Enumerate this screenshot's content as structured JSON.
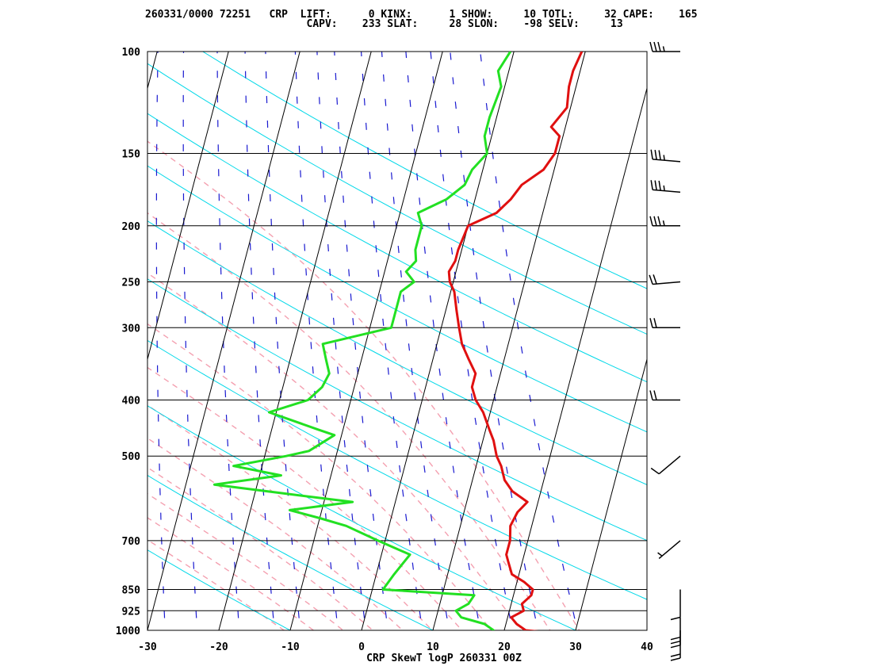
{
  "header": {
    "line1": "260331/0000 72251   CRP  LIFT:      0 KINX:      1 SHOW:     10 TOTL:     32 CAPE:    165",
    "line2": "                          CAPV:    233 SLAT:     28 SLON:    -98 SELV:     13"
  },
  "colors": {
    "temperature": "#e01010",
    "dewpoint": "#22e022",
    "isotherm": "#000000",
    "dry_adiabat": "#00d8e8",
    "moist_adiabat": "#f4a0b0",
    "mixing_ratio": "#1a1ad0",
    "isobar": "#000000"
  },
  "chart_data": {
    "type": "line",
    "title": "CRP SkewT logP 260331 00Z",
    "xlabel": "",
    "ylabel": "",
    "xlim": [
      -30,
      40
    ],
    "ylim": [
      1000,
      100
    ],
    "y_scale": "log",
    "x_ticks": [
      -30,
      -20,
      -10,
      0,
      10,
      20,
      30,
      40
    ],
    "x_tick_labels": [
      "-30",
      "-20",
      "-10",
      "0",
      "10",
      "20",
      "30",
      "40"
    ],
    "pressure_levels": [
      100,
      150,
      200,
      250,
      300,
      400,
      500,
      700,
      850,
      925,
      1000
    ],
    "pressure_labels": [
      "100",
      "150",
      "200",
      "250",
      "300",
      "400",
      "500",
      "700",
      "850",
      "925",
      "1000"
    ],
    "grid": true,
    "series": [
      {
        "role": "temperature",
        "pressure": [
          1010,
          1000,
          975,
          950,
          925,
          900,
          870,
          850,
          825,
          800,
          760,
          740,
          700,
          660,
          625,
          600,
          575,
          550,
          520,
          500,
          470,
          450,
          420,
          400,
          380,
          360,
          340,
          320,
          300,
          280,
          260,
          250,
          240,
          230,
          220,
          200,
          190,
          180,
          170,
          160,
          150,
          140,
          135,
          125,
          115,
          108,
          100
        ],
        "values": [
          27.0,
          23.0,
          21.5,
          20.5,
          22.0,
          21.5,
          22.5,
          22.5,
          21.0,
          19.0,
          18.0,
          17.5,
          17.5,
          17.0,
          17.5,
          18.5,
          16.0,
          14.5,
          13.5,
          12.5,
          11.5,
          10.5,
          9.0,
          7.5,
          6.5,
          6.5,
          5.0,
          3.5,
          2.5,
          1.5,
          0.5,
          -0.5,
          -1.0,
          -0.5,
          -0.5,
          0.0,
          3.5,
          5.0,
          6.0,
          8.5,
          9.5,
          9.5,
          8.0,
          9.5,
          9.0,
          9.0,
          9.5
        ]
      },
      {
        "role": "dewpoint",
        "pressure": [
          1010,
          1000,
          975,
          950,
          925,
          900,
          870,
          850,
          800,
          740,
          700,
          660,
          640,
          620,
          600,
          580,
          560,
          540,
          520,
          500,
          490,
          460,
          450,
          420,
          400,
          380,
          360,
          340,
          320,
          300,
          280,
          260,
          250,
          240,
          230,
          220,
          200,
          190,
          180,
          170,
          160,
          150,
          140,
          130,
          115,
          108,
          100
        ],
        "values": [
          18.5,
          18.5,
          17.0,
          13.5,
          12.5,
          14.0,
          14.5,
          1.5,
          2.5,
          4.0,
          -1.0,
          -6.0,
          -10.0,
          -14.5,
          -6.0,
          -16.0,
          -26.0,
          -17.0,
          -24.0,
          -17.0,
          -14.0,
          -11.0,
          -13.5,
          -21.0,
          -16.0,
          -14.5,
          -14.0,
          -15.0,
          -16.0,
          -7.0,
          -7.0,
          -7.0,
          -5.5,
          -7.0,
          -6.0,
          -6.5,
          -6.5,
          -7.5,
          -4.0,
          -2.0,
          -1.5,
          0.0,
          -1.0,
          -1.0,
          -0.5,
          -1.5,
          -0.5
        ]
      }
    ],
    "wind_barbs": [
      {
        "pressure": 1000,
        "direction": 180,
        "speed_kt": 20
      },
      {
        "pressure": 950,
        "direction": 180,
        "speed_kt": 30
      },
      {
        "pressure": 850,
        "direction": 180,
        "speed_kt": 10
      },
      {
        "pressure": 700,
        "direction": 230,
        "speed_kt": 5
      },
      {
        "pressure": 500,
        "direction": 230,
        "speed_kt": 10
      },
      {
        "pressure": 400,
        "direction": 270,
        "speed_kt": 20
      },
      {
        "pressure": 300,
        "direction": 270,
        "speed_kt": 20
      },
      {
        "pressure": 250,
        "direction": 265,
        "speed_kt": 20
      },
      {
        "pressure": 200,
        "direction": 270,
        "speed_kt": 35
      },
      {
        "pressure": 175,
        "direction": 275,
        "speed_kt": 35
      },
      {
        "pressure": 155,
        "direction": 275,
        "speed_kt": 35
      },
      {
        "pressure": 100,
        "direction": 270,
        "speed_kt": 35
      }
    ]
  }
}
